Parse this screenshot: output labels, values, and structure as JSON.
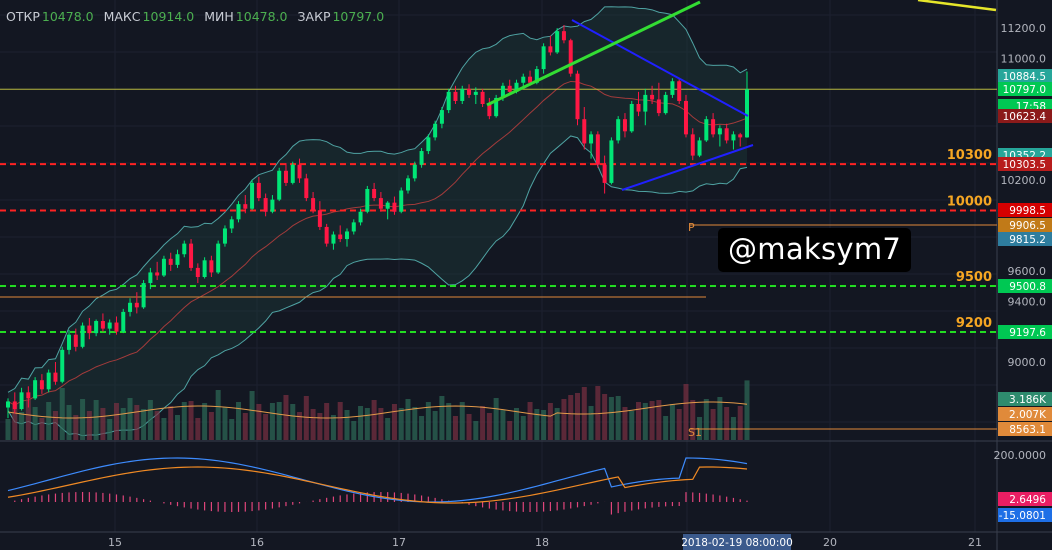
{
  "header": {
    "open_label": "ОТКР",
    "open_value": "10478.0",
    "high_label": "МАКС",
    "high_value": "10914.0",
    "low_label": "МИН",
    "low_value": "10478.0",
    "close_label": "ЗАКР",
    "close_value": "10797.0"
  },
  "watermark": "@maksym7",
  "colors": {
    "up": "#00e676",
    "down": "#ff1744",
    "bg": "#131722",
    "grid": "#1e2330"
  },
  "chart_data": {
    "type": "candlestick",
    "title": "",
    "price_axis": {
      "min": 8500,
      "max": 11300,
      "ticks": [
        "11200.0",
        "11000.0",
        "10200.0",
        "9600.0",
        "9400.0",
        "9000.0"
      ]
    },
    "time_axis": {
      "ticks": [
        "15",
        "16",
        "17",
        "18",
        "19",
        "20",
        "21"
      ],
      "cursor_label": "2018-02-19 08:00:00"
    },
    "price_tags": [
      {
        "text": "10884.5",
        "color": "#26a69a"
      },
      {
        "text": "10797.0",
        "color": "#00c853"
      },
      {
        "text": "17:58",
        "color": "#00c853"
      },
      {
        "text": "10623.4",
        "color": "#8b1a1a"
      },
      {
        "text": "10352.2",
        "color": "#26a69a"
      },
      {
        "text": "10303.5",
        "color": "#b71c1c"
      },
      {
        "text": "9998.5",
        "color": "#d50000"
      },
      {
        "text": "9906.5",
        "color": "#c17a18"
      },
      {
        "text": "9815.2",
        "color": "#2e7d9e"
      },
      {
        "text": "9500.8",
        "color": "#00c853"
      },
      {
        "text": "9197.6",
        "color": "#00c853"
      },
      {
        "text": "8563.1",
        "color": "#e08a3a"
      }
    ],
    "levels": [
      {
        "price": 10303.5,
        "label": "10300",
        "color": "#ff2222",
        "style": "dashed"
      },
      {
        "price": 9998.5,
        "label": "10000",
        "color": "#ff2222",
        "style": "dashed"
      },
      {
        "price": 9500.8,
        "label": "9500",
        "color": "#22dd22",
        "style": "dashed"
      },
      {
        "price": 9197.6,
        "label": "9200",
        "color": "#22dd22",
        "style": "dashed"
      },
      {
        "price": 10797.0,
        "label": "",
        "color": "#dddd44",
        "style": "solid"
      }
    ],
    "pivots": [
      {
        "label": "P",
        "price": 9906.5
      },
      {
        "label": "S1",
        "price": 8563.1
      }
    ],
    "volume_axis": {
      "tags": [
        "3.186K",
        "2.007K"
      ]
    },
    "macd_axis": {
      "ticks": [
        "200.0000"
      ],
      "tags": [
        "2.6496",
        "-15.0801"
      ]
    },
    "candles": [
      [
        8700,
        8760,
        8630,
        8740
      ],
      [
        8740,
        8800,
        8660,
        8690
      ],
      [
        8690,
        8830,
        8680,
        8800
      ],
      [
        8800,
        8840,
        8700,
        8760
      ],
      [
        8760,
        8900,
        8750,
        8880
      ],
      [
        8880,
        8920,
        8790,
        8820
      ],
      [
        8820,
        8950,
        8800,
        8930
      ],
      [
        8930,
        9000,
        8850,
        8870
      ],
      [
        8870,
        9100,
        8860,
        9080
      ],
      [
        9080,
        9210,
        9050,
        9180
      ],
      [
        9180,
        9220,
        9070,
        9100
      ],
      [
        9100,
        9260,
        9090,
        9240
      ],
      [
        9240,
        9290,
        9150,
        9190
      ],
      [
        9190,
        9280,
        9170,
        9270
      ],
      [
        9270,
        9320,
        9200,
        9220
      ],
      [
        9220,
        9280,
        9180,
        9260
      ],
      [
        9260,
        9300,
        9180,
        9200
      ],
      [
        9200,
        9350,
        9190,
        9330
      ],
      [
        9330,
        9420,
        9300,
        9390
      ],
      [
        9390,
        9460,
        9320,
        9360
      ],
      [
        9360,
        9540,
        9350,
        9520
      ],
      [
        9520,
        9620,
        9480,
        9590
      ],
      [
        9590,
        9660,
        9540,
        9570
      ],
      [
        9570,
        9700,
        9560,
        9680
      ],
      [
        9680,
        9720,
        9600,
        9640
      ],
      [
        9640,
        9740,
        9620,
        9710
      ],
      [
        9710,
        9800,
        9690,
        9780
      ],
      [
        9780,
        9810,
        9600,
        9620
      ],
      [
        9620,
        9650,
        9520,
        9560
      ],
      [
        9560,
        9690,
        9550,
        9670
      ],
      [
        9670,
        9700,
        9560,
        9590
      ],
      [
        9590,
        9800,
        9580,
        9780
      ],
      [
        9780,
        9900,
        9760,
        9880
      ],
      [
        9880,
        9960,
        9850,
        9940
      ],
      [
        9940,
        10060,
        9920,
        10040
      ],
      [
        10040,
        10100,
        9980,
        10010
      ],
      [
        10010,
        10200,
        10000,
        10180
      ],
      [
        10180,
        10220,
        10060,
        10080
      ],
      [
        10080,
        10110,
        9960,
        9990
      ],
      [
        9990,
        10100,
        9980,
        10070
      ],
      [
        10070,
        10280,
        10060,
        10260
      ],
      [
        10260,
        10310,
        10160,
        10180
      ],
      [
        10180,
        10320,
        10170,
        10300
      ],
      [
        10300,
        10340,
        10180,
        10210
      ],
      [
        10210,
        10240,
        10060,
        10080
      ],
      [
        10080,
        10120,
        9980,
        10000
      ],
      [
        10000,
        10060,
        9870,
        9890
      ],
      [
        9890,
        9910,
        9760,
        9780
      ],
      [
        9780,
        9860,
        9740,
        9840
      ],
      [
        9840,
        9900,
        9790,
        9810
      ],
      [
        9810,
        9880,
        9760,
        9860
      ],
      [
        9860,
        9940,
        9840,
        9920
      ],
      [
        9920,
        10010,
        9900,
        9990
      ],
      [
        9990,
        10160,
        9980,
        10140
      ],
      [
        10140,
        10180,
        10060,
        10080
      ],
      [
        10080,
        10120,
        9990,
        10010
      ],
      [
        10010,
        10060,
        9940,
        10050
      ],
      [
        10050,
        10090,
        9970,
        9990
      ],
      [
        9990,
        10150,
        9980,
        10130
      ],
      [
        10130,
        10230,
        10110,
        10210
      ],
      [
        10210,
        10320,
        10190,
        10300
      ],
      [
        10300,
        10410,
        10280,
        10390
      ],
      [
        10390,
        10500,
        10370,
        10480
      ],
      [
        10480,
        10590,
        10460,
        10570
      ],
      [
        10570,
        10680,
        10540,
        10660
      ],
      [
        10660,
        10800,
        10640,
        10780
      ],
      [
        10780,
        10820,
        10700,
        10720
      ],
      [
        10720,
        10820,
        10700,
        10800
      ],
      [
        10800,
        10830,
        10740,
        10760
      ],
      [
        10760,
        10810,
        10700,
        10780
      ],
      [
        10780,
        10800,
        10680,
        10700
      ],
      [
        10700,
        10740,
        10600,
        10620
      ],
      [
        10620,
        10760,
        10610,
        10740
      ],
      [
        10740,
        10840,
        10720,
        10820
      ],
      [
        10820,
        10860,
        10760,
        10780
      ],
      [
        10780,
        10860,
        10770,
        10840
      ],
      [
        10840,
        10900,
        10800,
        10880
      ],
      [
        10880,
        10920,
        10820,
        10840
      ],
      [
        10840,
        10950,
        10830,
        10930
      ],
      [
        10930,
        11100,
        10900,
        11080
      ],
      [
        11080,
        11150,
        11020,
        11040
      ],
      [
        11040,
        11200,
        11030,
        11180
      ],
      [
        11180,
        11220,
        11100,
        11120
      ],
      [
        11120,
        11130,
        10880,
        10900
      ],
      [
        10900,
        10920,
        10560,
        10600
      ],
      [
        10600,
        10680,
        10400,
        10440
      ],
      [
        10440,
        10520,
        10340,
        10500
      ],
      [
        10500,
        10520,
        10280,
        10300
      ],
      [
        10300,
        10360,
        10110,
        10180
      ],
      [
        10180,
        10480,
        10170,
        10460
      ],
      [
        10460,
        10620,
        10440,
        10600
      ],
      [
        10600,
        10640,
        10480,
        10520
      ],
      [
        10520,
        10720,
        10510,
        10700
      ],
      [
        10700,
        10780,
        10620,
        10650
      ],
      [
        10650,
        10800,
        10560,
        10760
      ],
      [
        10760,
        10820,
        10700,
        10730
      ],
      [
        10730,
        10840,
        10620,
        10640
      ],
      [
        10640,
        10780,
        10630,
        10760
      ],
      [
        10760,
        10870,
        10740,
        10850
      ],
      [
        10850,
        10870,
        10700,
        10720
      ],
      [
        10720,
        10760,
        10480,
        10500
      ],
      [
        10500,
        10540,
        10330,
        10360
      ],
      [
        10360,
        10480,
        10350,
        10460
      ],
      [
        10460,
        10620,
        10450,
        10600
      ],
      [
        10600,
        10640,
        10480,
        10500
      ],
      [
        10500,
        10560,
        10420,
        10540
      ],
      [
        10540,
        10570,
        10440,
        10460
      ],
      [
        10460,
        10520,
        10400,
        10500
      ],
      [
        10500,
        10510,
        10420,
        10480
      ],
      [
        10480,
        10914,
        10478,
        10797
      ]
    ]
  }
}
